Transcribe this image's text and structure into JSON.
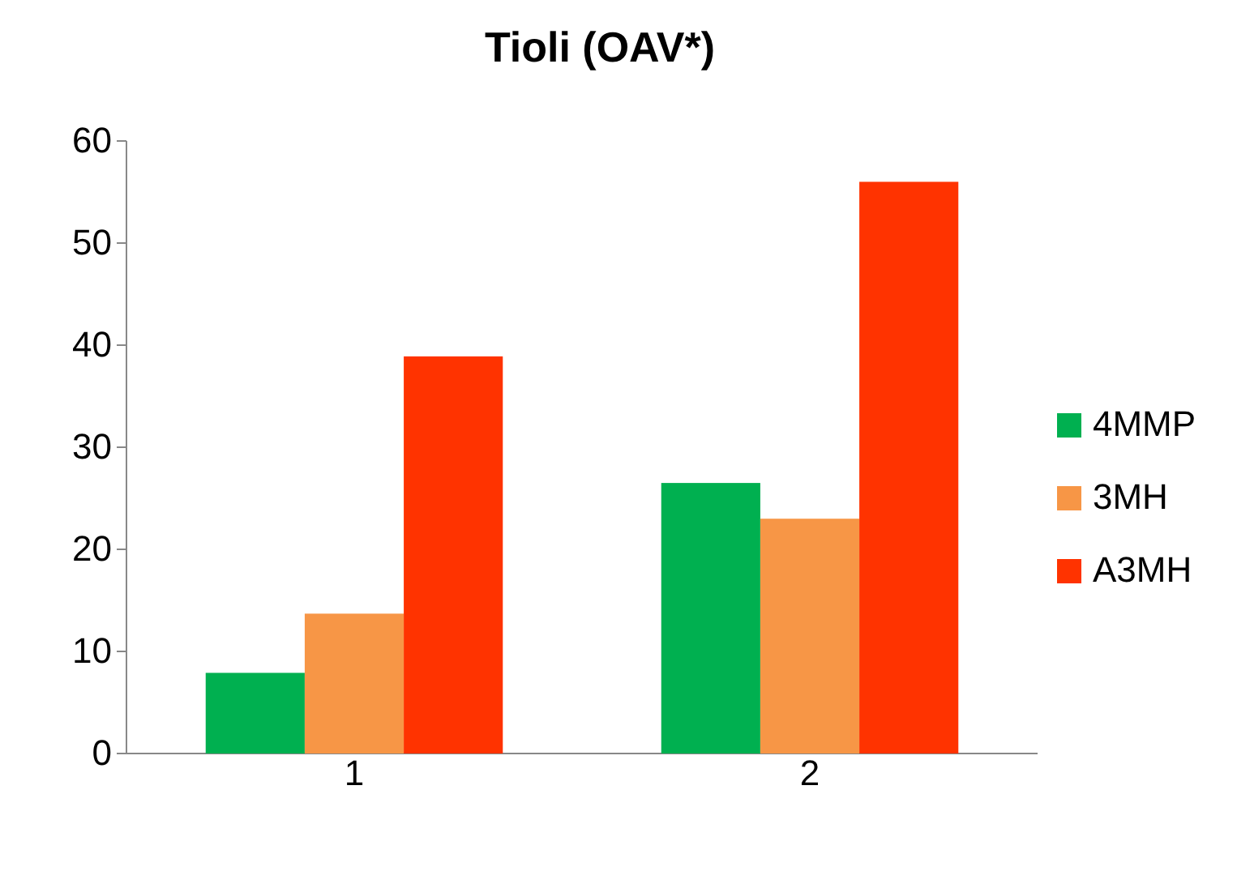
{
  "chart_data": {
    "type": "bar",
    "title": "Tioli (OAV*)",
    "categories": [
      "1",
      "2"
    ],
    "series": [
      {
        "name": "4MMP",
        "color": "#00b050",
        "values": [
          7.9,
          26.5
        ]
      },
      {
        "name": "3MH",
        "color": "#f79646",
        "values": [
          13.7,
          23
        ]
      },
      {
        "name": "A3MH",
        "color": "#ff3300",
        "values": [
          38.9,
          56
        ]
      }
    ],
    "ylim": [
      0,
      60
    ],
    "yticks": [
      0,
      10,
      20,
      30,
      40,
      50,
      60
    ],
    "legend": "right",
    "grid": false
  }
}
